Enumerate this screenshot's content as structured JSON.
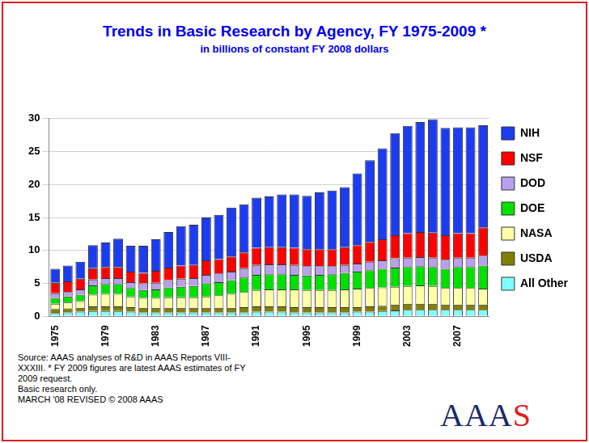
{
  "chart_data": {
    "type": "bar",
    "title": "Trends in Basic Research by Agency, FY 1975-2009 *",
    "subtitle": "in billions of constant FY 2008 dollars",
    "footnotes": [
      "Source: AAAS analyses of R&D in AAAS Reports VIII-XXXIII.  * FY 2009 figures are latest AAAS estimates of FY 2009 request.",
      "Basic research only.",
      "MARCH '08 REVISED © 2008 AAAS"
    ],
    "logo": "AAAS",
    "categories": [
      "1975",
      null,
      null,
      null,
      "1979",
      null,
      null,
      null,
      "1983",
      null,
      null,
      null,
      "1987",
      null,
      null,
      null,
      "1991",
      null,
      null,
      null,
      "1995",
      null,
      null,
      null,
      "1999",
      null,
      null,
      null,
      "2003",
      null,
      null,
      null,
      "2007",
      null,
      null
    ],
    "stacked": true,
    "grid": true,
    "legend": "right",
    "ylim": [
      0,
      30
    ],
    "yticks": [
      0,
      5,
      10,
      15,
      20,
      25,
      30
    ],
    "series": [
      {
        "name": "NIH",
        "color": "#1c3cf0",
        "values": [
          2.1,
          2.4,
          2.6,
          3.5,
          3.7,
          4.3,
          3.9,
          4.1,
          4.8,
          5.4,
          6.0,
          6.1,
          6.5,
          6.7,
          7.4,
          7.3,
          7.6,
          7.7,
          8.0,
          8.1,
          8.1,
          8.6,
          8.9,
          9.1,
          10.9,
          12.4,
          13.8,
          15.5,
          16.3,
          16.7,
          17.2,
          16.3,
          16.1,
          16.1,
          15.5
        ]
      },
      {
        "name": "NSF",
        "color": "#ff0000",
        "values": [
          1.6,
          1.6,
          1.6,
          1.7,
          1.7,
          1.7,
          1.6,
          1.6,
          1.8,
          1.9,
          2.0,
          2.0,
          2.2,
          2.2,
          2.3,
          2.4,
          2.6,
          2.6,
          2.6,
          2.6,
          2.6,
          2.6,
          2.6,
          2.7,
          2.8,
          3.0,
          3.2,
          3.5,
          3.7,
          3.8,
          3.8,
          3.7,
          3.7,
          3.7,
          4.3
        ]
      },
      {
        "name": "DOD",
        "color": "#b8a0ec",
        "values": [
          0.7,
          0.7,
          0.8,
          0.9,
          0.9,
          0.9,
          0.9,
          1.0,
          1.0,
          1.1,
          1.2,
          1.2,
          1.3,
          1.3,
          1.3,
          1.4,
          1.5,
          1.5,
          1.5,
          1.5,
          1.4,
          1.3,
          1.2,
          1.2,
          1.2,
          1.3,
          1.3,
          1.4,
          1.4,
          1.4,
          1.4,
          1.4,
          1.4,
          1.4,
          1.5
        ]
      },
      {
        "name": "DOE",
        "color": "#00e000",
        "values": [
          0.9,
          0.9,
          1.0,
          1.4,
          1.5,
          1.5,
          1.3,
          1.2,
          1.3,
          1.5,
          1.6,
          1.7,
          2.0,
          2.0,
          2.1,
          2.2,
          2.3,
          2.3,
          2.3,
          2.2,
          2.2,
          2.3,
          2.4,
          2.5,
          2.6,
          2.7,
          2.8,
          2.9,
          2.9,
          2.9,
          2.9,
          2.9,
          3.2,
          3.2,
          3.5
        ]
      },
      {
        "name": "NASA",
        "color": "#ffffa8",
        "values": [
          0.8,
          0.9,
          1.0,
          1.8,
          1.9,
          1.9,
          1.6,
          1.5,
          1.5,
          1.6,
          1.6,
          1.6,
          1.7,
          1.9,
          2.1,
          2.3,
          2.5,
          2.6,
          2.6,
          2.7,
          2.6,
          2.6,
          2.6,
          2.7,
          2.8,
          2.8,
          2.8,
          2.7,
          2.7,
          2.8,
          2.7,
          2.5,
          2.5,
          2.5,
          2.4
        ]
      },
      {
        "name": "USDA",
        "color": "#808000",
        "values": [
          0.6,
          0.6,
          0.6,
          0.7,
          0.7,
          0.7,
          0.7,
          0.7,
          0.7,
          0.7,
          0.7,
          0.7,
          0.7,
          0.7,
          0.7,
          0.8,
          0.8,
          0.8,
          0.8,
          0.8,
          0.8,
          0.8,
          0.8,
          0.8,
          0.7,
          0.8,
          0.8,
          0.9,
          0.9,
          0.9,
          0.9,
          0.8,
          0.8,
          0.8,
          0.8
        ]
      },
      {
        "name": "All Other",
        "color": "#80ffff",
        "values": [
          0.5,
          0.6,
          0.7,
          0.8,
          0.8,
          0.8,
          0.7,
          0.6,
          0.6,
          0.6,
          0.6,
          0.6,
          0.6,
          0.6,
          0.6,
          0.6,
          0.7,
          0.7,
          0.7,
          0.6,
          0.6,
          0.6,
          0.6,
          0.6,
          0.7,
          0.7,
          0.8,
          0.9,
          1.0,
          1.0,
          1.0,
          1.0,
          1.0,
          1.0,
          1.0
        ]
      }
    ]
  }
}
